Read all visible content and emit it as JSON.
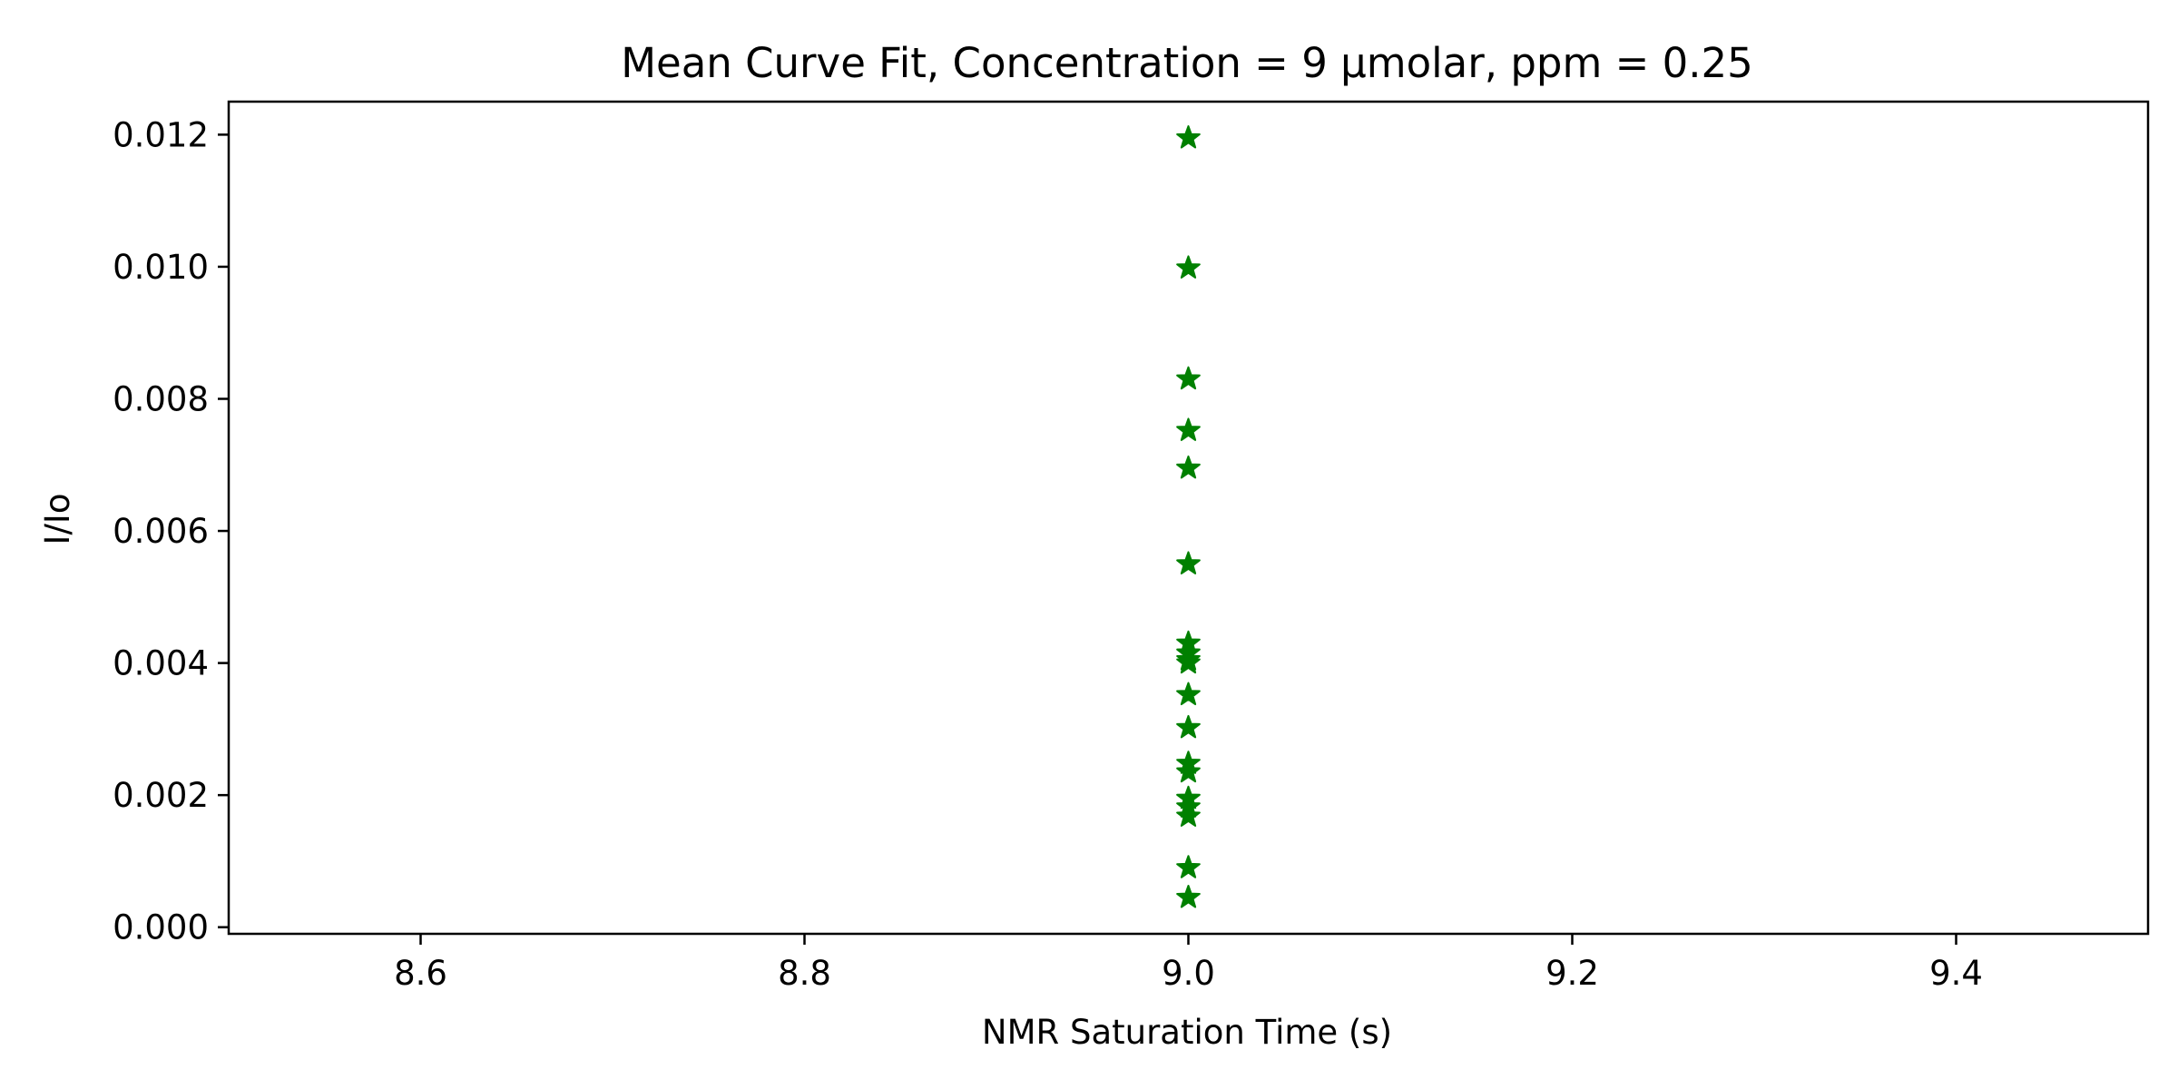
{
  "chart_data": {
    "type": "scatter",
    "title": "Mean Curve Fit, Concentration = 9 µmolar, ppm = 0.25",
    "xlabel": "NMR Saturation Time (s)",
    "ylabel": "I/Io",
    "xlim": [
      8.5,
      9.5
    ],
    "ylim": [
      -0.0001,
      0.0125
    ],
    "x_ticks": [
      8.6,
      8.8,
      9.0,
      9.2,
      9.4
    ],
    "x_tick_labels": [
      "8.6",
      "8.8",
      "9.0",
      "9.2",
      "9.4"
    ],
    "y_ticks": [
      0.0,
      0.002,
      0.004,
      0.006,
      0.008,
      0.01,
      0.012
    ],
    "y_tick_labels": [
      "0.000",
      "0.002",
      "0.004",
      "0.006",
      "0.008",
      "0.010",
      "0.012"
    ],
    "grid": false,
    "series": [
      {
        "marker": "star",
        "color": "#008000",
        "x": [
          9.0,
          9.0,
          9.0,
          9.0,
          9.0,
          9.0,
          9.0,
          9.0,
          9.0,
          9.0,
          9.0,
          9.0,
          9.0,
          9.0,
          9.0,
          9.0,
          9.0,
          9.0,
          9.0
        ],
        "y": [
          0.01195,
          0.00998,
          0.0083,
          0.00752,
          0.00695,
          0.0055,
          0.0043,
          0.00415,
          0.004,
          0.00352,
          0.00302,
          0.00248,
          0.00235,
          0.00195,
          0.00182,
          0.00168,
          0.0009,
          0.00045,
          0.00405
        ]
      }
    ]
  }
}
